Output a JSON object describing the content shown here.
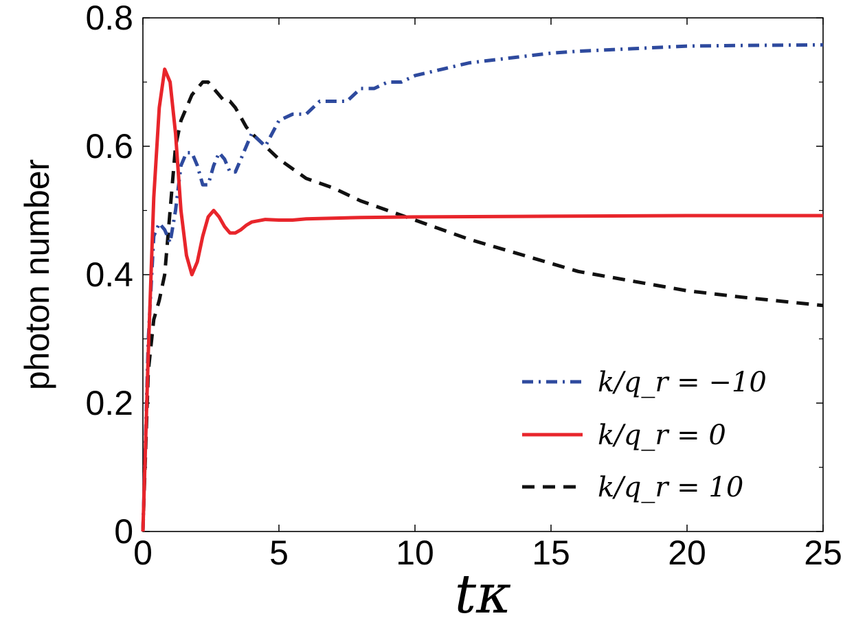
{
  "chart_data": {
    "type": "line",
    "xlabel": "tκ",
    "ylabel": "photon number",
    "xlim": [
      0,
      25
    ],
    "ylim": [
      0,
      0.8
    ],
    "xticks": [
      "0",
      "5",
      "10",
      "15",
      "20",
      "25"
    ],
    "yticks": [
      "0",
      "0.2",
      "0.4",
      "0.6",
      "0.8"
    ],
    "legend_position": "bottom-right",
    "grid": false,
    "series": [
      {
        "name": "k/q_r = −10",
        "color": "#2e4a9e",
        "style": "dashdot",
        "x": [
          0,
          0.2,
          0.4,
          0.6,
          0.8,
          1.0,
          1.2,
          1.4,
          1.6,
          1.8,
          2.0,
          2.2,
          2.4,
          2.6,
          2.8,
          3.0,
          3.2,
          3.4,
          3.6,
          3.8,
          4.0,
          4.5,
          5.0,
          5.5,
          6.0,
          6.5,
          7.0,
          7.5,
          8.0,
          8.5,
          9.0,
          9.5,
          10.0,
          11.0,
          12.0,
          13.0,
          14.0,
          15.0,
          16.0,
          17.0,
          18.0,
          19.0,
          20.0,
          22.0,
          25.0
        ],
        "y": [
          0,
          0.3,
          0.46,
          0.48,
          0.47,
          0.45,
          0.5,
          0.57,
          0.59,
          0.59,
          0.57,
          0.54,
          0.54,
          0.57,
          0.59,
          0.58,
          0.56,
          0.56,
          0.58,
          0.6,
          0.62,
          0.6,
          0.64,
          0.65,
          0.65,
          0.67,
          0.67,
          0.67,
          0.69,
          0.69,
          0.7,
          0.7,
          0.71,
          0.72,
          0.73,
          0.735,
          0.74,
          0.745,
          0.748,
          0.75,
          0.752,
          0.754,
          0.756,
          0.757,
          0.758
        ]
      },
      {
        "name": "k/q_r = 0",
        "color": "#e8252b",
        "style": "solid",
        "x": [
          0,
          0.2,
          0.4,
          0.6,
          0.8,
          1.0,
          1.2,
          1.4,
          1.6,
          1.8,
          2.0,
          2.2,
          2.4,
          2.6,
          2.8,
          3.0,
          3.2,
          3.4,
          3.6,
          3.8,
          4.0,
          4.5,
          5.0,
          5.5,
          6.0,
          7.0,
          8.0,
          10.0,
          15.0,
          20.0,
          25.0
        ],
        "y": [
          0,
          0.28,
          0.52,
          0.66,
          0.72,
          0.7,
          0.62,
          0.5,
          0.43,
          0.4,
          0.42,
          0.46,
          0.49,
          0.5,
          0.49,
          0.475,
          0.465,
          0.465,
          0.47,
          0.477,
          0.482,
          0.486,
          0.485,
          0.485,
          0.487,
          0.488,
          0.489,
          0.49,
          0.491,
          0.492,
          0.492
        ]
      },
      {
        "name": "k/q_r = 10",
        "color": "#111111",
        "style": "dashed",
        "x": [
          0,
          0.2,
          0.4,
          0.6,
          0.8,
          1.0,
          1.2,
          1.4,
          1.6,
          1.8,
          2.0,
          2.2,
          2.4,
          2.6,
          2.8,
          3.0,
          3.2,
          3.4,
          3.6,
          3.8,
          4.0,
          4.5,
          5.0,
          6.0,
          7.0,
          8.0,
          9.0,
          10.0,
          12.0,
          14.0,
          16.0,
          18.0,
          20.0,
          22.0,
          25.0
        ],
        "y": [
          0,
          0.25,
          0.33,
          0.36,
          0.4,
          0.5,
          0.6,
          0.64,
          0.66,
          0.68,
          0.69,
          0.7,
          0.7,
          0.69,
          0.68,
          0.67,
          0.67,
          0.66,
          0.645,
          0.63,
          0.62,
          0.6,
          0.58,
          0.55,
          0.535,
          0.515,
          0.5,
          0.485,
          0.455,
          0.43,
          0.405,
          0.39,
          0.375,
          0.365,
          0.352
        ]
      }
    ]
  }
}
